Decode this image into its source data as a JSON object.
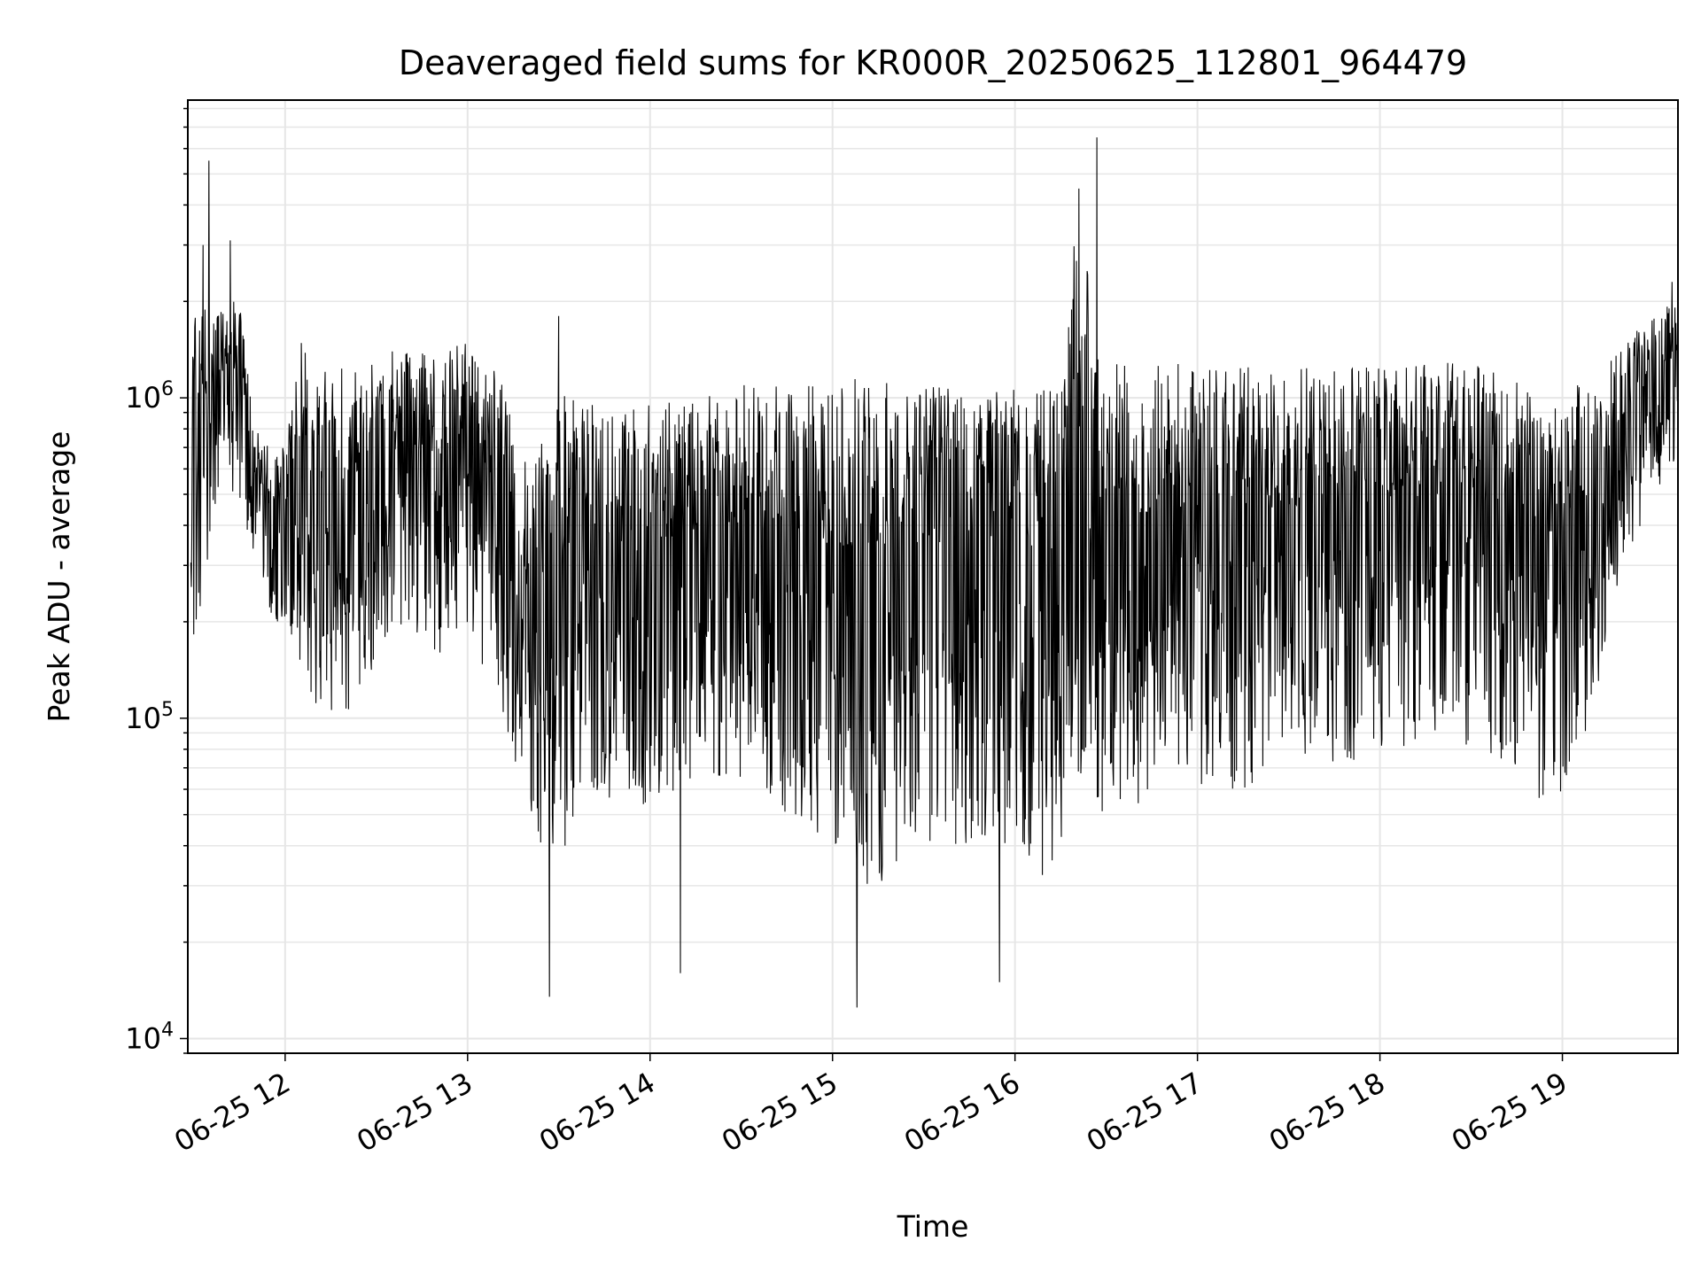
{
  "chart_data": {
    "type": "line",
    "title": "Deaveraged field sums for KR000R_20250625_112801_964479",
    "xlabel": "Time",
    "ylabel": "Peak ADU - average",
    "xlim": [
      "2025-06-25 11:28",
      "2025-06-25 19:38"
    ],
    "ylim": [
      9000,
      8500000
    ],
    "yscale": "log",
    "grid": true,
    "line_color": "#000000",
    "grid_color": "#e6e6e6",
    "x_ticks": [
      {
        "value": "2025-06-25 12:00",
        "label": "06-25 12"
      },
      {
        "value": "2025-06-25 13:00",
        "label": "06-25 13"
      },
      {
        "value": "2025-06-25 14:00",
        "label": "06-25 14"
      },
      {
        "value": "2025-06-25 15:00",
        "label": "06-25 15"
      },
      {
        "value": "2025-06-25 16:00",
        "label": "06-25 16"
      },
      {
        "value": "2025-06-25 17:00",
        "label": "06-25 17"
      },
      {
        "value": "2025-06-25 18:00",
        "label": "06-25 18"
      },
      {
        "value": "2025-06-25 19:00",
        "label": "06-25 19"
      }
    ],
    "y_ticks": [
      {
        "value": 10000,
        "base": "10",
        "exp": "4"
      },
      {
        "value": 100000,
        "base": "10",
        "exp": "5"
      },
      {
        "value": 1000000,
        "base": "10",
        "exp": "6"
      }
    ],
    "series": [
      {
        "x": [
          "2025-06-25 11:30",
          "2025-06-25 11:35",
          "2025-06-25 11:40",
          "2025-06-25 11:45",
          "2025-06-25 11:50",
          "2025-06-25 11:55",
          "2025-06-25 12:00",
          "2025-06-25 12:05",
          "2025-06-25 12:10",
          "2025-06-25 12:20",
          "2025-06-25 12:30",
          "2025-06-25 12:40",
          "2025-06-25 12:50",
          "2025-06-25 13:00",
          "2025-06-25 13:10",
          "2025-06-25 13:20",
          "2025-06-25 13:30",
          "2025-06-25 13:40",
          "2025-06-25 13:50",
          "2025-06-25 14:00",
          "2025-06-25 14:15",
          "2025-06-25 14:30",
          "2025-06-25 14:45",
          "2025-06-25 15:00",
          "2025-06-25 15:10",
          "2025-06-25 15:20",
          "2025-06-25 15:30",
          "2025-06-25 15:40",
          "2025-06-25 15:50",
          "2025-06-25 16:00",
          "2025-06-25 16:10",
          "2025-06-25 16:15",
          "2025-06-25 16:20",
          "2025-06-25 16:25",
          "2025-06-25 16:30",
          "2025-06-25 16:40",
          "2025-06-25 16:50",
          "2025-06-25 17:00",
          "2025-06-25 17:15",
          "2025-06-25 17:30",
          "2025-06-25 17:45",
          "2025-06-25 18:00",
          "2025-06-25 18:15",
          "2025-06-25 18:30",
          "2025-06-25 18:45",
          "2025-06-25 18:55",
          "2025-06-25 19:00",
          "2025-06-25 19:10",
          "2025-06-25 19:20",
          "2025-06-25 19:30",
          "2025-06-25 19:36"
        ],
        "low": [
          150000,
          300000,
          500000,
          400000,
          300000,
          200000,
          200000,
          150000,
          100000,
          100000,
          150000,
          200000,
          150000,
          200000,
          100000,
          50000,
          30000,
          60000,
          50000,
          50000,
          60000,
          60000,
          50000,
          40000,
          30000,
          30000,
          40000,
          40000,
          40000,
          40000,
          30000,
          40000,
          60000,
          50000,
          50000,
          50000,
          60000,
          60000,
          60000,
          70000,
          70000,
          80000,
          80000,
          80000,
          70000,
          50000,
          60000,
          100000,
          300000,
          500000,
          600000
        ],
        "high": [
          2000000,
          2000000,
          2000000,
          2000000,
          800000,
          700000,
          700000,
          1500000,
          1300000,
          1400000,
          1400000,
          1400000,
          1400000,
          1500000,
          1200000,
          600000,
          1000000,
          1100000,
          900000,
          950000,
          1000000,
          1100000,
          1100000,
          1100000,
          1200000,
          1200000,
          1100000,
          1150000,
          1200000,
          1100000,
          1100000,
          1100000,
          3500000,
          2500000,
          1300000,
          1300000,
          1300000,
          1300000,
          1250000,
          1250000,
          1250000,
          1250000,
          1300000,
          1300000,
          1200000,
          900000,
          1000000,
          1200000,
          1500000,
          1800000,
          2000000
        ],
        "spikes": [
          {
            "x": "2025-06-25 11:35",
            "y": 5500000
          },
          {
            "x": "2025-06-25 11:33",
            "y": 3000000
          },
          {
            "x": "2025-06-25 11:42",
            "y": 3100000
          },
          {
            "x": "2025-06-25 13:30",
            "y": 1800000
          },
          {
            "x": "2025-06-25 16:27",
            "y": 6500000
          },
          {
            "x": "2025-06-25 16:21",
            "y": 4500000
          },
          {
            "x": "2025-06-25 15:08",
            "y": 12500
          },
          {
            "x": "2025-06-25 13:27",
            "y": 13500
          },
          {
            "x": "2025-06-25 15:55",
            "y": 15000
          },
          {
            "x": "2025-06-25 14:10",
            "y": 16000
          },
          {
            "x": "2025-06-25 19:36",
            "y": 2300000
          }
        ]
      }
    ]
  }
}
